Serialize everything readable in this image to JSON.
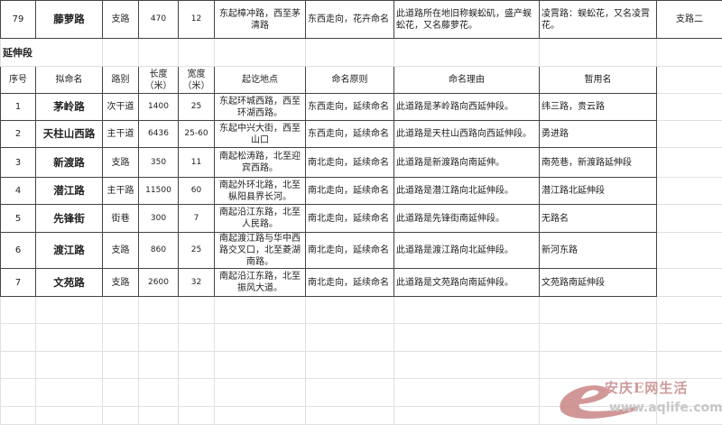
{
  "top_row": {
    "no": "79",
    "name": "藤萝路",
    "type": "支路",
    "length": "470",
    "width": "12",
    "location": "东起樟冲路，西至茅清路",
    "principle": "东西走向，花卉命名",
    "reason": "此道路所在地旧称蜈蚣矶，盛产蜈蚣花，又名藤萝花。",
    "temp_name": "凌霄路：蜈蚣花，又名凌霄花。",
    "category": "支路二"
  },
  "section_title": "延伸段",
  "headers": [
    "序号",
    "拟命名",
    "路别",
    "长度（米）",
    "宽度（米）",
    "起讫地点",
    "命名原则",
    "命名理由",
    "暂用名"
  ],
  "rows": [
    {
      "no": "1",
      "name": "茅岭路",
      "type": "次干道",
      "length": "1400",
      "width": "25",
      "location": "东起环城西路，西至环湖西路。",
      "principle": "东西走向，延续命名",
      "reason": "此道路是茅岭路向西延伸段。",
      "temp_name": "纬三路，贵云路"
    },
    {
      "no": "2",
      "name": "天柱山西路",
      "type": "主干道",
      "length": "6436",
      "width": "25-60",
      "location": "东起中兴大街，西至山口",
      "principle": "东西走向，延续命名",
      "reason": "此道路是天柱山西路向西延伸段。",
      "temp_name": "勇进路"
    },
    {
      "no": "3",
      "name": "新渡路",
      "type": "支路",
      "length": "350",
      "width": "11",
      "location": "南起松涛路，北至迎宾西路。",
      "principle": "南北走向，延续命名",
      "reason": "此道路是新渡路向南延伸。",
      "temp_name": "南苑巷，新渡路延伸段"
    },
    {
      "no": "4",
      "name": "潜江路",
      "type": "主干路",
      "length": "11500",
      "width": "60",
      "location": "南起外环北路，北至枞阳县界长河。",
      "principle": "南北走向，延续命名",
      "reason": "此道路是潜江路向北延伸段。",
      "temp_name": "潜江路北延伸段"
    },
    {
      "no": "5",
      "name": "先锋街",
      "type": "街巷",
      "length": "300",
      "width": "7",
      "location": "南起沿江东路，北至人民路。",
      "principle": "南北走向，延续命名",
      "reason": "此道路是先锋街南延伸段。",
      "temp_name": "无路名"
    },
    {
      "no": "6",
      "name": "渡江路",
      "type": "支路",
      "length": "860",
      "width": "25",
      "location": "南起渡江路与华中西路交叉口，北至菱湖南路。",
      "principle": "南北走向，延续命名",
      "reason": "此道路是渡江路向北延伸段。",
      "temp_name": "新河东路"
    },
    {
      "no": "7",
      "name": "文苑路",
      "type": "支路",
      "length": "2600",
      "width": "32",
      "location": "南起沿江东路，北至振风大道。",
      "principle": "南北走向，延续命名",
      "reason": "此道路是文苑路向南延伸段。",
      "temp_name": "文苑路南延伸段"
    }
  ],
  "watermark": {
    "text": "安庆E网生活",
    "url": "www.aqlife.com",
    "color": "#c98585"
  }
}
